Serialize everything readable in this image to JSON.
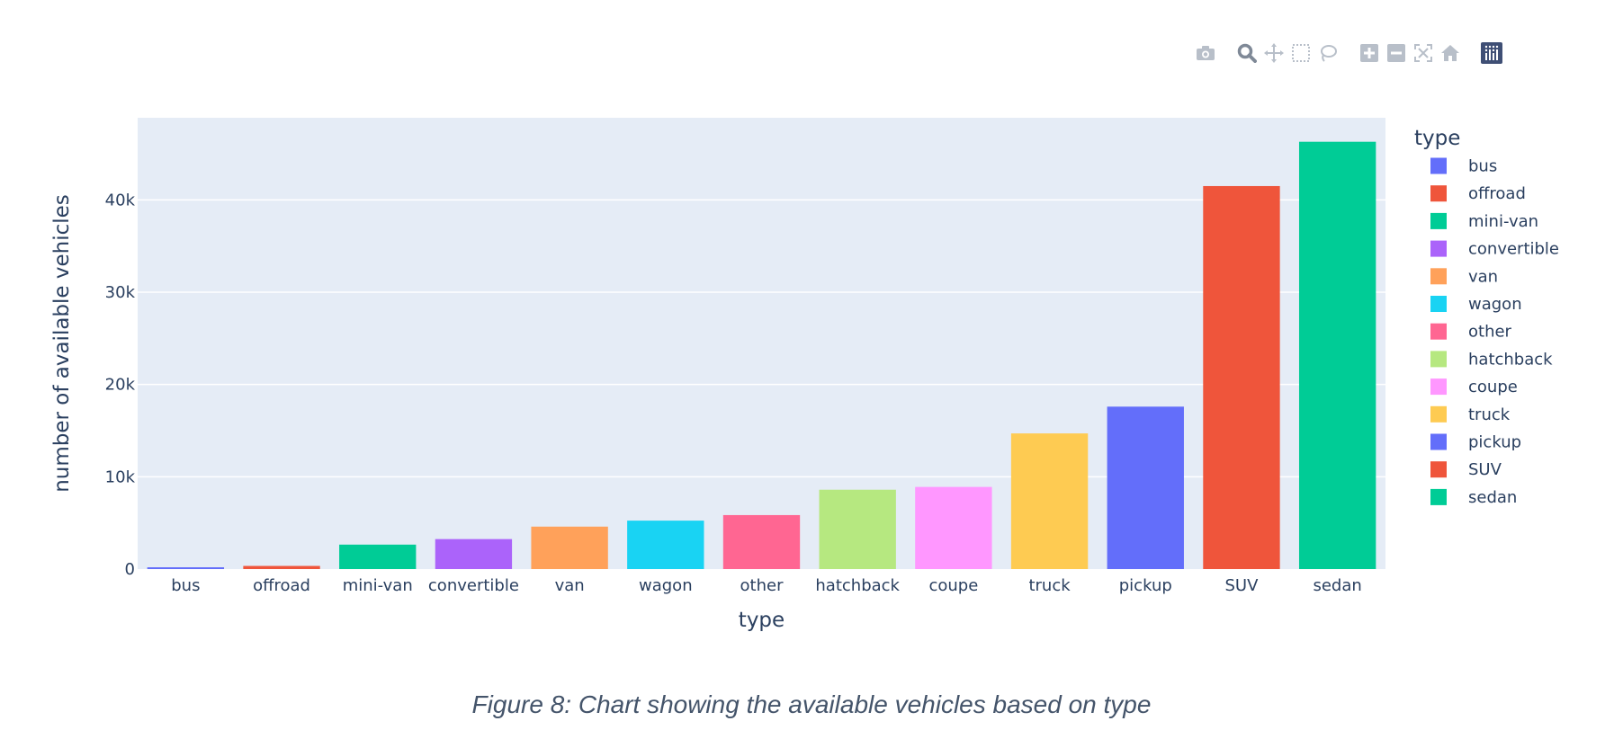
{
  "modebar": {
    "icons": [
      "camera-icon",
      "zoom-icon",
      "pan-icon",
      "box-select-icon",
      "lasso-select-icon",
      "zoom-in-icon",
      "zoom-out-icon",
      "autoscale-icon",
      "home-icon",
      "plotly-logo-icon"
    ]
  },
  "caption": "Figure 8: Chart showing the available vehicles based on type",
  "chart_data": {
    "type": "bar",
    "title": "",
    "xlabel": "type",
    "ylabel": "number of available vehicles",
    "categories": [
      "bus",
      "offroad",
      "mini-van",
      "convertible",
      "van",
      "wagon",
      "other",
      "hatchback",
      "coupe",
      "truck",
      "pickup",
      "SUV",
      "sedan"
    ],
    "values": [
      170,
      340,
      2650,
      3250,
      4600,
      5250,
      5850,
      8600,
      8900,
      14700,
      17600,
      41500,
      46300
    ],
    "colors": [
      "#636efa",
      "#ef553b",
      "#00cc96",
      "#ab63fa",
      "#ffa15a",
      "#19d3f3",
      "#ff6692",
      "#b6e880",
      "#ff97ff",
      "#fecb52",
      "#636efa",
      "#ef553b",
      "#00cc96"
    ],
    "ylim": [
      0,
      48900
    ],
    "yticks": [
      0,
      10000,
      20000,
      30000,
      40000
    ],
    "yticklabels": [
      "0",
      "10k",
      "20k",
      "30k",
      "40k"
    ],
    "grid": true,
    "legend": {
      "title": "type",
      "placement": "right"
    },
    "plot_bg": "#e5ecf6",
    "text_color": "#2a3f5f"
  }
}
